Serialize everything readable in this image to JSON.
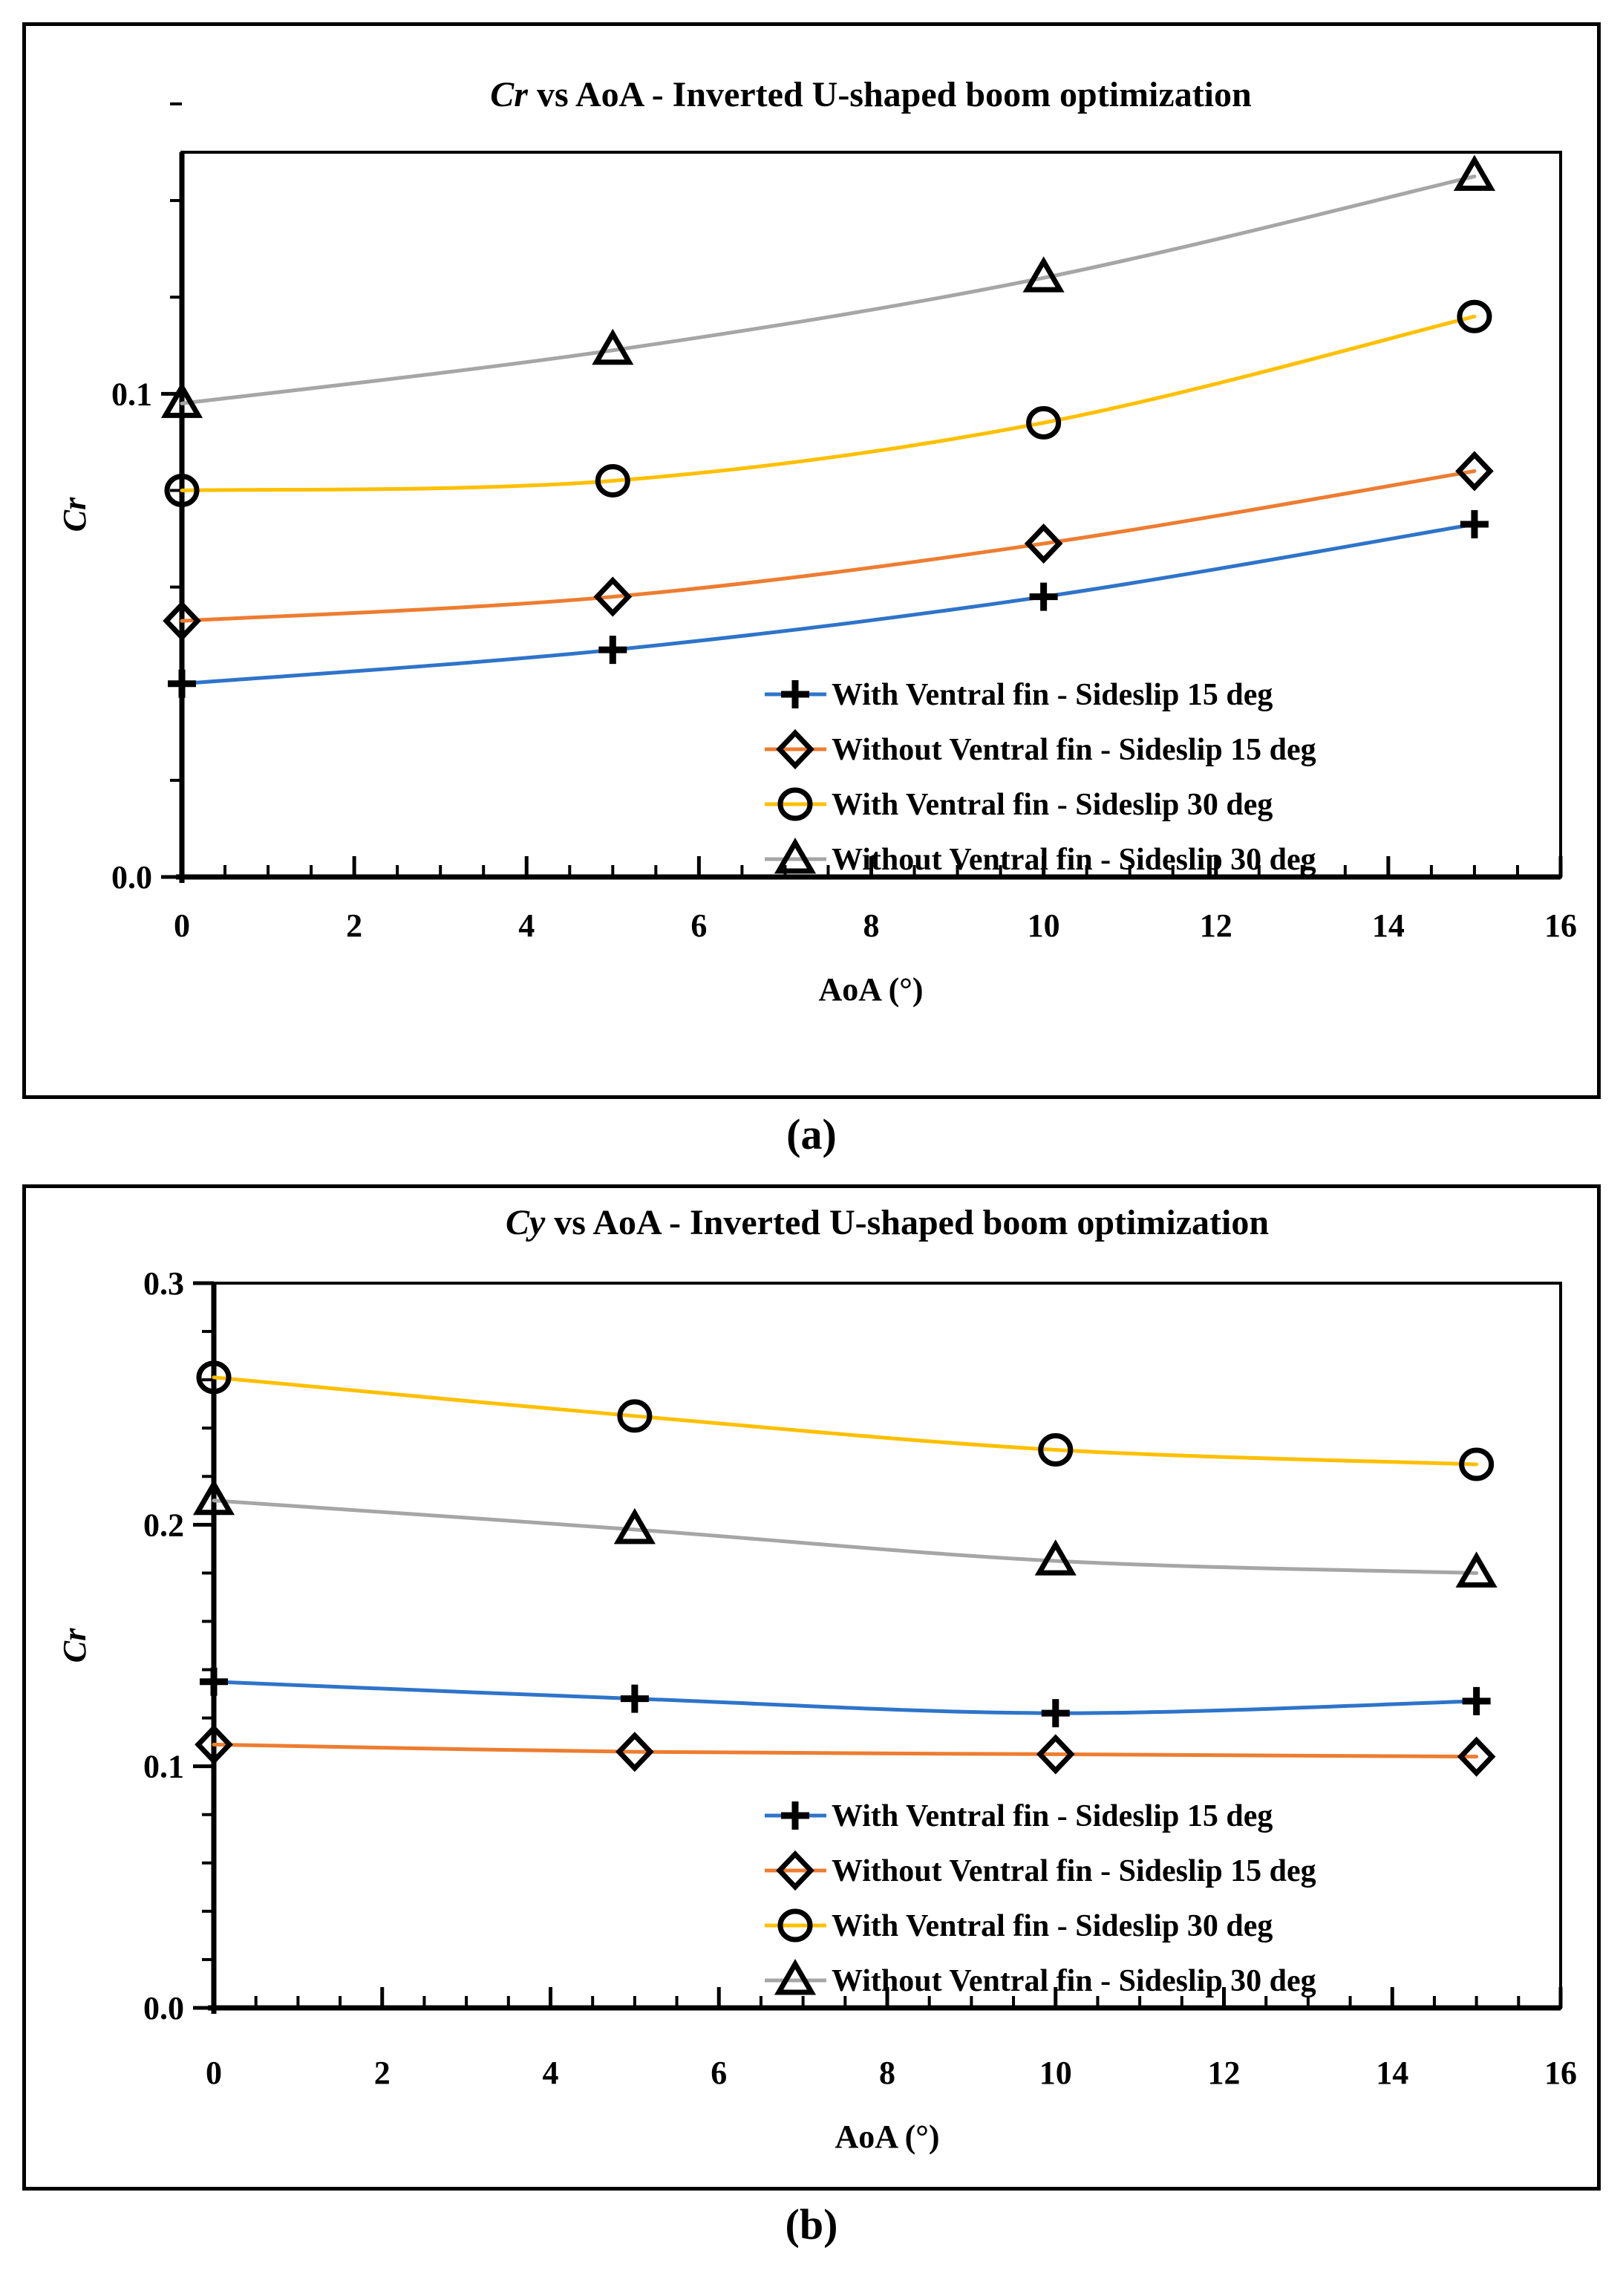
{
  "background_color": "#FFFFFF",
  "border_color": "#000000",
  "marker_color": "#000000",
  "captions": {
    "a": "(a)",
    "b": "(b)"
  },
  "chart_data": [
    {
      "type": "line",
      "panel": "a",
      "title": "Cr vs AoA - Inverted U-shaped boom optimization",
      "title_italic": "Cr",
      "title_rest": " vs AoA - Inverted U-shaped boom optimization",
      "xlabel": "AoA (°)",
      "ylabel": "Cr",
      "x": [
        0,
        5,
        10,
        15
      ],
      "xlim": [
        0,
        16
      ],
      "ylim": [
        0,
        0.15
      ],
      "x_ticks": [
        0,
        2,
        4,
        6,
        8,
        10,
        12,
        14,
        16
      ],
      "x_minor_step": 0.5,
      "y_ticks": [
        {
          "v": 0,
          "label": "0.0"
        },
        {
          "v": 0.1,
          "label": "0.1"
        }
      ],
      "y_minor_step": 0.02,
      "grid": false,
      "legend_position": "inside lower right",
      "series": [
        {
          "name": "With Ventral fin - Sideslip 15 deg",
          "marker": "plus",
          "color": "#2E74C9",
          "values": [
            0.04,
            0.047,
            0.058,
            0.073
          ]
        },
        {
          "name": "Without Ventral fin - Sideslip 15 deg",
          "marker": "diamond",
          "color": "#ED7D31",
          "values": [
            0.053,
            0.058,
            0.069,
            0.084
          ]
        },
        {
          "name": "With Ventral fin - Sideslip 30 deg",
          "marker": "circle",
          "color": "#FFC000",
          "values": [
            0.08,
            0.082,
            0.094,
            0.116
          ]
        },
        {
          "name": "Without Ventral fin - Sideslip 30 deg",
          "marker": "triangle",
          "color": "#A6A6A6",
          "values": [
            0.098,
            0.109,
            0.124,
            0.145
          ]
        }
      ]
    },
    {
      "type": "line",
      "panel": "b",
      "title": "Cy vs AoA - Inverted U-shaped boom optimization",
      "title_italic": "Cy",
      "title_rest": " vs AoA - Inverted U-shaped boom optimization",
      "xlabel": "AoA (°)",
      "ylabel": "Cr",
      "x": [
        0,
        5,
        10,
        15
      ],
      "xlim": [
        0,
        16
      ],
      "ylim": [
        0,
        0.3
      ],
      "x_ticks": [
        0,
        2,
        4,
        6,
        8,
        10,
        12,
        14,
        16
      ],
      "x_minor_step": 0.5,
      "y_ticks": [
        {
          "v": 0,
          "label": "0.0"
        },
        {
          "v": 0.1,
          "label": "0.1"
        },
        {
          "v": 0.2,
          "label": "0.2"
        },
        {
          "v": 0.3,
          "label": "0.3"
        }
      ],
      "y_minor_step": 0.02,
      "grid": false,
      "legend_position": "inside lower right",
      "series": [
        {
          "name": "With Ventral fin - Sideslip 15 deg",
          "marker": "plus",
          "color": "#2E74C9",
          "values": [
            0.135,
            0.128,
            0.122,
            0.127
          ]
        },
        {
          "name": "Without Ventral fin - Sideslip 15 deg",
          "marker": "diamond",
          "color": "#ED7D31",
          "values": [
            0.109,
            0.106,
            0.105,
            0.104
          ]
        },
        {
          "name": "With Ventral fin - Sideslip 30 deg",
          "marker": "circle",
          "color": "#FFC000",
          "values": [
            0.261,
            0.245,
            0.231,
            0.225
          ]
        },
        {
          "name": "Without Ventral fin - Sideslip 30 deg",
          "marker": "triangle",
          "color": "#A6A6A6",
          "values": [
            0.21,
            0.198,
            0.185,
            0.18
          ]
        }
      ]
    }
  ]
}
